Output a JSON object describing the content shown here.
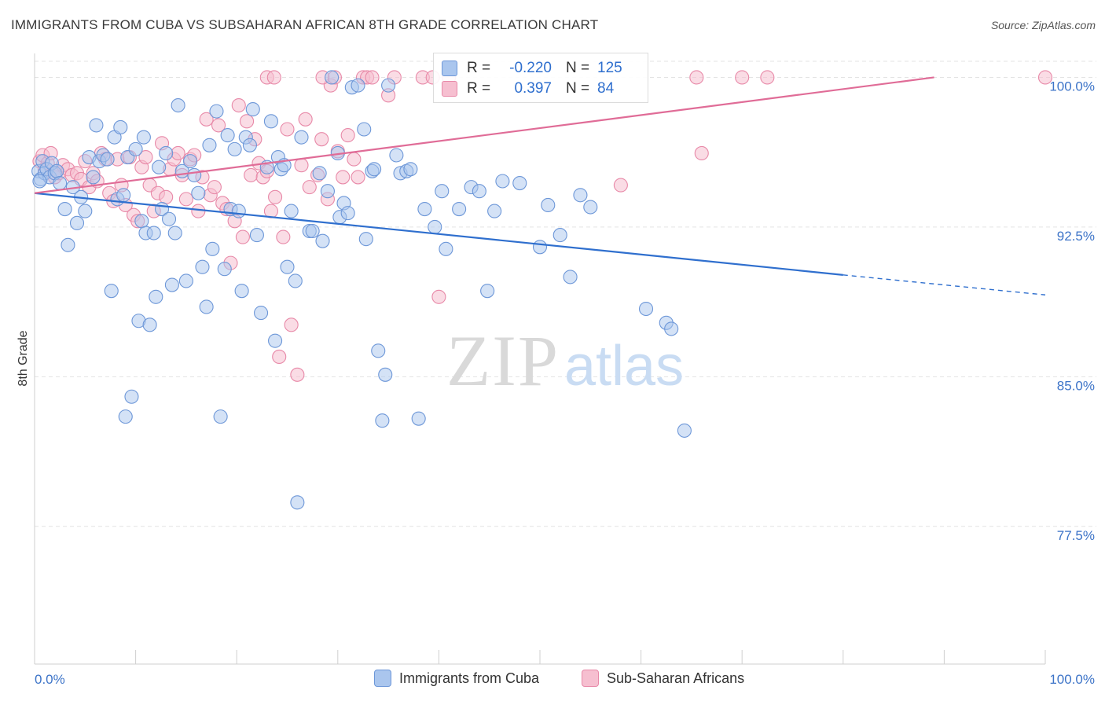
{
  "header": {
    "title": "IMMIGRANTS FROM CUBA VS SUBSAHARAN AFRICAN 8TH GRADE CORRELATION CHART",
    "source": "Source: ZipAtlas.com"
  },
  "watermark": {
    "zip": "ZIP",
    "atlas": "atlas"
  },
  "legend": {
    "rows": [
      {
        "r_label": "R =",
        "r_value": "-0.220",
        "n_label": "N =",
        "n_value": "125"
      },
      {
        "r_label": "R =",
        "r_value": "0.397",
        "n_label": "N =",
        "n_value": "84"
      }
    ]
  },
  "bottom_legend": [
    {
      "label": "Immigrants from Cuba"
    },
    {
      "label": "Sub-Saharan Africans"
    }
  ],
  "colors": {
    "blue_fill": "#aac6ee",
    "blue_stroke": "#6d97d8",
    "blue_line": "#2f6fce",
    "pink_fill": "#f6bfd0",
    "pink_stroke": "#e889a8",
    "pink_line": "#e06c97",
    "tick_label": "#3d74c8",
    "grid": "#e3e3e3"
  },
  "chart_data": {
    "type": "scatter",
    "title": "IMMIGRANTS FROM CUBA VS SUBSAHARAN AFRICAN 8TH GRADE CORRELATION CHART",
    "xlabel": "",
    "ylabel": "8th Grade",
    "xlim": [
      0,
      100
    ],
    "ylim": [
      70.6,
      101.2
    ],
    "x_tick_labels": [
      "0.0%",
      "100.0%"
    ],
    "y_ticks": [
      77.5,
      85.0,
      92.5,
      100.0
    ],
    "y_tick_labels": [
      "77.5%",
      "85.0%",
      "92.5%",
      "100.0%"
    ],
    "grid": true,
    "legend_position": "top-center",
    "series": [
      {
        "name": "Immigrants from Cuba",
        "r": -0.22,
        "n": 125,
        "trend": {
          "x": [
            0,
            80,
            100
          ],
          "y": [
            94.2,
            90.1,
            89.1
          ],
          "dashed_from": 80
        },
        "points": [
          [
            0.4,
            95.3
          ],
          [
            0.6,
            94.9
          ],
          [
            0.8,
            95.8
          ],
          [
            1.0,
            95.2
          ],
          [
            1.2,
            95.4
          ],
          [
            1.5,
            95.0
          ],
          [
            1.7,
            95.7
          ],
          [
            2.0,
            95.2
          ],
          [
            2.2,
            95.3
          ],
          [
            2.5,
            94.7
          ],
          [
            3.0,
            93.4
          ],
          [
            3.3,
            91.6
          ],
          [
            3.8,
            94.5
          ],
          [
            4.2,
            92.7
          ],
          [
            4.6,
            94.0
          ],
          [
            5.0,
            93.3
          ],
          [
            5.4,
            96.0
          ],
          [
            5.8,
            95.0
          ],
          [
            6.1,
            97.6
          ],
          [
            6.4,
            95.8
          ],
          [
            6.8,
            96.1
          ],
          [
            7.2,
            95.9
          ],
          [
            7.6,
            89.3
          ],
          [
            7.9,
            97.0
          ],
          [
            8.2,
            93.9
          ],
          [
            8.5,
            97.5
          ],
          [
            8.8,
            94.1
          ],
          [
            9.0,
            83.0
          ],
          [
            9.2,
            96.0
          ],
          [
            9.6,
            84.0
          ],
          [
            10.0,
            96.4
          ],
          [
            10.3,
            87.8
          ],
          [
            10.6,
            92.8
          ],
          [
            10.8,
            97.0
          ],
          [
            11.0,
            92.2
          ],
          [
            11.4,
            87.6
          ],
          [
            11.8,
            92.2
          ],
          [
            12.0,
            89.0
          ],
          [
            12.3,
            95.5
          ],
          [
            12.6,
            93.4
          ],
          [
            13.0,
            96.2
          ],
          [
            13.3,
            92.9
          ],
          [
            13.6,
            89.6
          ],
          [
            13.9,
            92.2
          ],
          [
            14.2,
            98.6
          ],
          [
            14.6,
            95.3
          ],
          [
            15.0,
            89.8
          ],
          [
            15.4,
            95.8
          ],
          [
            15.8,
            95.1
          ],
          [
            16.2,
            94.2
          ],
          [
            16.6,
            90.5
          ],
          [
            17.0,
            88.5
          ],
          [
            17.3,
            96.6
          ],
          [
            17.6,
            91.4
          ],
          [
            18.0,
            98.3
          ],
          [
            18.4,
            83.0
          ],
          [
            18.8,
            90.4
          ],
          [
            19.1,
            97.1
          ],
          [
            19.4,
            93.4
          ],
          [
            19.8,
            96.4
          ],
          [
            20.2,
            93.3
          ],
          [
            20.5,
            89.3
          ],
          [
            20.9,
            97.0
          ],
          [
            21.3,
            96.6
          ],
          [
            21.6,
            98.4
          ],
          [
            22.0,
            92.1
          ],
          [
            22.4,
            88.2
          ],
          [
            23.0,
            95.5
          ],
          [
            23.4,
            97.8
          ],
          [
            23.8,
            86.8
          ],
          [
            24.1,
            96.0
          ],
          [
            24.4,
            95.4
          ],
          [
            24.7,
            95.6
          ],
          [
            25.0,
            90.5
          ],
          [
            25.4,
            93.3
          ],
          [
            25.8,
            89.8
          ],
          [
            26.0,
            78.7
          ],
          [
            26.4,
            97.0
          ],
          [
            27.2,
            92.3
          ],
          [
            27.5,
            92.3
          ],
          [
            28.2,
            95.2
          ],
          [
            28.5,
            91.8
          ],
          [
            29.0,
            94.3
          ],
          [
            29.4,
            100.0
          ],
          [
            30.0,
            96.2
          ],
          [
            30.2,
            93.0
          ],
          [
            30.6,
            93.7
          ],
          [
            31.0,
            93.2
          ],
          [
            31.4,
            99.5
          ],
          [
            32.0,
            99.6
          ],
          [
            32.6,
            97.4
          ],
          [
            32.8,
            91.9
          ],
          [
            33.4,
            95.3
          ],
          [
            33.6,
            95.4
          ],
          [
            34.0,
            86.3
          ],
          [
            34.4,
            82.8
          ],
          [
            34.7,
            85.1
          ],
          [
            35.0,
            99.6
          ],
          [
            35.8,
            96.1
          ],
          [
            36.2,
            95.2
          ],
          [
            36.8,
            95.3
          ],
          [
            37.2,
            95.4
          ],
          [
            38.0,
            82.9
          ],
          [
            38.6,
            93.4
          ],
          [
            39.6,
            92.5
          ],
          [
            40.3,
            94.3
          ],
          [
            40.7,
            91.4
          ],
          [
            42.0,
            93.4
          ],
          [
            43.2,
            94.5
          ],
          [
            44.0,
            94.3
          ],
          [
            44.8,
            89.3
          ],
          [
            45.5,
            93.3
          ],
          [
            46.3,
            94.8
          ],
          [
            48.0,
            94.7
          ],
          [
            50.0,
            91.5
          ],
          [
            50.8,
            93.6
          ],
          [
            52.0,
            92.1
          ],
          [
            53.0,
            90.0
          ],
          [
            54.0,
            94.1
          ],
          [
            55.0,
            93.5
          ],
          [
            60.5,
            88.4
          ],
          [
            62.5,
            87.7
          ],
          [
            63.0,
            87.4
          ],
          [
            64.3,
            82.3
          ],
          [
            0.5,
            94.8
          ]
        ]
      },
      {
        "name": "Sub-Saharan Africans",
        "r": 0.397,
        "n": 84,
        "trend": {
          "x": [
            0,
            89
          ],
          "y": [
            94.2,
            100.0
          ]
        },
        "points": [
          [
            0.5,
            95.8
          ],
          [
            0.8,
            96.1
          ],
          [
            1.0,
            95.4
          ],
          [
            1.3,
            95.7
          ],
          [
            1.6,
            96.2
          ],
          [
            2.0,
            95.0
          ],
          [
            2.4,
            95.2
          ],
          [
            2.8,
            95.6
          ],
          [
            3.3,
            95.4
          ],
          [
            3.7,
            95.1
          ],
          [
            4.2,
            95.2
          ],
          [
            4.6,
            94.9
          ],
          [
            5.0,
            95.8
          ],
          [
            5.4,
            94.5
          ],
          [
            5.8,
            95.2
          ],
          [
            6.2,
            94.8
          ],
          [
            6.6,
            96.2
          ],
          [
            7.0,
            95.9
          ],
          [
            7.4,
            94.2
          ],
          [
            7.8,
            93.8
          ],
          [
            8.2,
            95.9
          ],
          [
            8.6,
            94.6
          ],
          [
            9.0,
            93.6
          ],
          [
            9.4,
            96.0
          ],
          [
            9.8,
            93.1
          ],
          [
            10.2,
            92.8
          ],
          [
            10.6,
            95.5
          ],
          [
            11.0,
            96.0
          ],
          [
            11.4,
            94.6
          ],
          [
            11.8,
            93.3
          ],
          [
            12.2,
            94.2
          ],
          [
            12.6,
            96.7
          ],
          [
            13.0,
            94.0
          ],
          [
            13.4,
            95.4
          ],
          [
            13.8,
            95.9
          ],
          [
            14.2,
            96.2
          ],
          [
            14.6,
            95.1
          ],
          [
            15.0,
            93.9
          ],
          [
            15.4,
            95.9
          ],
          [
            15.8,
            96.1
          ],
          [
            16.2,
            93.3
          ],
          [
            16.6,
            95.0
          ],
          [
            17.0,
            97.9
          ],
          [
            17.4,
            94.1
          ],
          [
            17.8,
            94.5
          ],
          [
            18.2,
            97.6
          ],
          [
            18.6,
            93.7
          ],
          [
            19.0,
            93.4
          ],
          [
            19.4,
            90.7
          ],
          [
            19.8,
            92.8
          ],
          [
            20.2,
            98.6
          ],
          [
            20.6,
            92.0
          ],
          [
            21.0,
            97.8
          ],
          [
            21.4,
            95.1
          ],
          [
            21.8,
            96.9
          ],
          [
            22.2,
            95.7
          ],
          [
            22.6,
            95.0
          ],
          [
            23.0,
            95.3
          ],
          [
            23.4,
            93.3
          ],
          [
            23.8,
            94.0
          ],
          [
            24.2,
            86.0
          ],
          [
            24.6,
            92.0
          ],
          [
            25.0,
            97.4
          ],
          [
            25.4,
            87.6
          ],
          [
            26.0,
            85.1
          ],
          [
            26.4,
            95.6
          ],
          [
            26.8,
            97.9
          ],
          [
            27.2,
            94.5
          ],
          [
            28.0,
            95.1
          ],
          [
            28.4,
            96.9
          ],
          [
            29.0,
            93.9
          ],
          [
            29.3,
            99.6
          ],
          [
            30.0,
            96.3
          ],
          [
            30.5,
            95.0
          ],
          [
            31.0,
            97.1
          ],
          [
            31.6,
            95.9
          ],
          [
            32.0,
            95.0
          ],
          [
            35.0,
            99.1
          ],
          [
            40.0,
            89.0
          ],
          [
            58.0,
            94.6
          ],
          [
            66.0,
            96.2
          ],
          [
            70.0,
            100.0
          ],
          [
            72.5,
            100.0
          ],
          [
            100,
            100.0
          ]
        ],
        "top_row_points": [
          [
            23.0,
            100.0
          ],
          [
            23.7,
            100.0
          ],
          [
            28.5,
            100.0
          ],
          [
            29.7,
            100.0
          ],
          [
            32.5,
            100.0
          ],
          [
            32.9,
            100.0
          ],
          [
            33.4,
            100.0
          ],
          [
            35.6,
            100.0
          ],
          [
            38.4,
            100.0
          ],
          [
            39.4,
            100.0
          ],
          [
            41.0,
            100.0
          ],
          [
            65.5,
            100.0
          ]
        ]
      }
    ]
  }
}
